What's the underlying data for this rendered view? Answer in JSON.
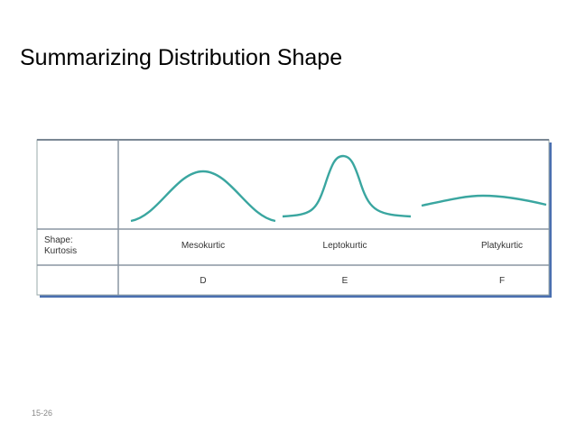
{
  "title": "Summarizing Distribution Shape",
  "table": {
    "row_label": [
      "Shape:",
      "Kurtosis"
    ],
    "columns": [
      "Mesokurtic",
      "Leptokurtic",
      "Platykurtic"
    ],
    "codes": [
      "D",
      "E",
      "F"
    ]
  },
  "footer": {
    "page": "15-26"
  }
}
